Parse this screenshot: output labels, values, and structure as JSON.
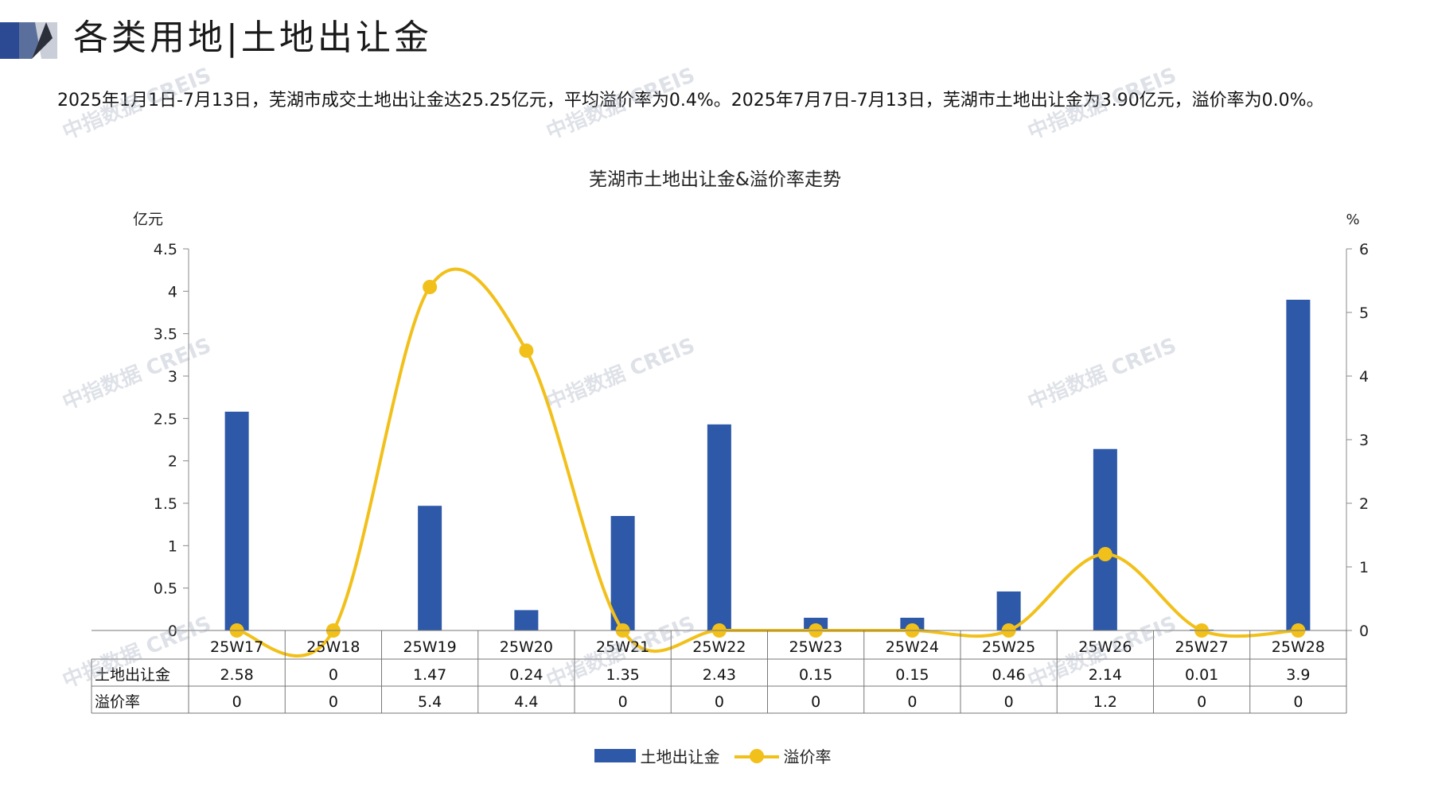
{
  "header": {
    "title": "各类用地|土地出让金"
  },
  "summary": "2025年1月1日-7月13日，芜湖市成交土地出让金达25.25亿元，平均溢价率为0.4%。2025年7月7日-7月13日，芜湖市土地出让金为3.90亿元，溢价率为0.0%。",
  "watermark": "中指数据 CREIS",
  "colors": {
    "bar": "#2e59a8",
    "line": "#f2c01a",
    "brand_dark": "#2b4a93",
    "brand_light": "#c9ced8"
  },
  "chart_data": {
    "type": "bar",
    "title": "芜湖市土地出让金&溢价率走势",
    "categories": [
      "25W17",
      "25W18",
      "25W19",
      "25W20",
      "25W21",
      "25W22",
      "25W23",
      "25W24",
      "25W25",
      "25W26",
      "25W27",
      "25W28"
    ],
    "series": [
      {
        "name": "土地出让金",
        "type": "bar",
        "axis": "left",
        "values": [
          2.58,
          0,
          1.47,
          0.24,
          1.35,
          2.43,
          0.15,
          0.15,
          0.46,
          2.14,
          0.01,
          3.9
        ],
        "table_labels": [
          "2.58",
          "0",
          "1.47",
          "0.24",
          "1.35",
          "2.43",
          "0.15",
          "0.15",
          "0.46",
          "2.14",
          "0.01",
          "3.9"
        ]
      },
      {
        "name": "溢价率",
        "type": "line",
        "smooth": true,
        "axis": "right",
        "values": [
          0,
          0,
          5.4,
          4.4,
          0,
          0,
          0,
          0,
          0,
          1.2,
          0,
          0
        ],
        "table_labels": [
          "0",
          "0",
          "5.4",
          "4.4",
          "0",
          "0",
          "0",
          "0",
          "0",
          "1.2",
          "0",
          "0"
        ]
      }
    ],
    "y_left": {
      "label": "亿元",
      "ylim": [
        0,
        4.5
      ],
      "ticks": [
        "0",
        "0.5",
        "1",
        "1.5",
        "2",
        "2.5",
        "3",
        "3.5",
        "4",
        "4.5"
      ]
    },
    "y_right": {
      "label": "%",
      "ylim": [
        0,
        6
      ],
      "ticks": [
        "0",
        "1",
        "2",
        "3",
        "4",
        "5",
        "6"
      ]
    },
    "data_table": true,
    "legend": "bottom-center",
    "grid": false
  }
}
